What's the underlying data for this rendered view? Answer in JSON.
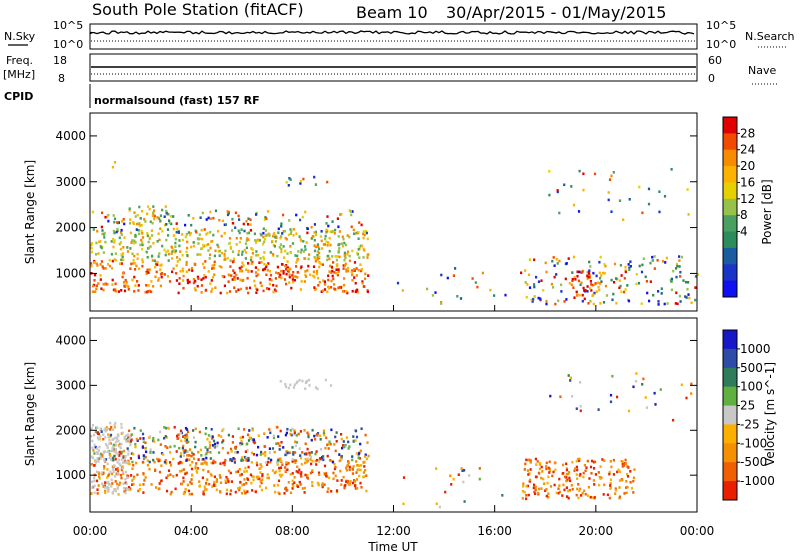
{
  "title": {
    "station": "South Pole Station (fitACF)",
    "beam": "Beam 10",
    "dates": "30/Apr/2015 - 01/May/2015"
  },
  "header_panels": {
    "nsky_label": "N.Sky",
    "nsearch_label": "N.Search",
    "log_ticks": [
      "10^5",
      "10^0"
    ],
    "freq_label": "Freq.",
    "freq_unit": "[MHz]",
    "freq_ticks": [
      "18",
      "8"
    ],
    "nave_label": "Nave",
    "nave_ticks": [
      "60",
      "0"
    ],
    "cpid_label": "CPID",
    "cpid_text": "normalsound (fast) 157 RF"
  },
  "chart_data": [
    {
      "type": "heatmap",
      "parameter": "Power",
      "ylabel": "Slant Range [km]",
      "xlabel": "",
      "x_range_hours": [
        0,
        24
      ],
      "ylim": [
        180,
        4500
      ],
      "yticks": [
        1000,
        2000,
        3000,
        4000
      ],
      "colorbar": {
        "label": "Power [dB]",
        "ticks": [
          "28",
          "24",
          "20",
          "16",
          "12",
          "8",
          "4"
        ],
        "colors": [
          "#e00000",
          "#f24a00",
          "#f98b00",
          "#fbb300",
          "#e6d000",
          "#96c24a",
          "#4aa060",
          "#2c8c5c",
          "#1a5ca0",
          "#1a34c8",
          "#1010f0"
        ]
      },
      "regions": [
        {
          "t": [
            0.0,
            11.0
          ],
          "r": [
            600,
            1300
          ],
          "level": "high"
        },
        {
          "t": [
            0.0,
            11.0
          ],
          "r": [
            1300,
            2000
          ],
          "level": "medium"
        },
        {
          "t": [
            0.0,
            11.0
          ],
          "r": [
            1900,
            2400
          ],
          "level": "low"
        },
        {
          "t": [
            1.5,
            3.0
          ],
          "r": [
            2100,
            2500
          ],
          "level": "medium"
        },
        {
          "t": [
            7.5,
            9.5
          ],
          "r": [
            2950,
            3150
          ],
          "level": "low"
        },
        {
          "t": [
            0.6,
            1.0
          ],
          "r": [
            3300,
            3500
          ],
          "level": "low"
        },
        {
          "t": [
            12.0,
            16.5
          ],
          "r": [
            300,
            1200
          ],
          "level": "sparse"
        },
        {
          "t": [
            17.0,
            24.0
          ],
          "r": [
            350,
            1400
          ],
          "level": "low"
        },
        {
          "t": [
            19.0,
            20.2
          ],
          "r": [
            500,
            1100
          ],
          "level": "high"
        },
        {
          "t": [
            18.0,
            24.0
          ],
          "r": [
            2200,
            3300
          ],
          "level": "sparse"
        }
      ]
    },
    {
      "type": "heatmap",
      "parameter": "Velocity",
      "ylabel": "Slant Range [km]",
      "xlabel": "Time UT",
      "x_range_hours": [
        0,
        24
      ],
      "xticks": [
        "00:00",
        "04:00",
        "08:00",
        "12:00",
        "16:00",
        "20:00",
        "00:00"
      ],
      "ylim": [
        180,
        4500
      ],
      "yticks": [
        1000,
        2000,
        3000,
        4000
      ],
      "colorbar": {
        "label": "Velocity [m s^-1]",
        "ticks": [
          "1000",
          "500",
          "100",
          "25",
          "-25",
          "-100",
          "-500",
          "-1000"
        ],
        "colors": [
          "#1818c8",
          "#2c4ca8",
          "#2e7c5a",
          "#60b040",
          "#c8c8c8",
          "#fbb000",
          "#f59000",
          "#f06000",
          "#e82000"
        ]
      },
      "regions": [
        {
          "t": [
            0.0,
            11.0
          ],
          "r": [
            600,
            1400
          ],
          "level": "orange"
        },
        {
          "t": [
            0.0,
            11.0
          ],
          "r": [
            1300,
            2100
          ],
          "level": "mixed"
        },
        {
          "t": [
            0.0,
            1.5
          ],
          "r": [
            600,
            2200
          ],
          "level": "grey"
        },
        {
          "t": [
            7.5,
            9.5
          ],
          "r": [
            2950,
            3150
          ],
          "level": "grey"
        },
        {
          "t": [
            12.0,
            16.5
          ],
          "r": [
            300,
            1200
          ],
          "level": "sparse"
        },
        {
          "t": [
            17.0,
            21.5
          ],
          "r": [
            500,
            1400
          ],
          "level": "orange"
        },
        {
          "t": [
            18.0,
            24.0
          ],
          "r": [
            2200,
            3300
          ],
          "level": "sparse"
        }
      ]
    }
  ]
}
